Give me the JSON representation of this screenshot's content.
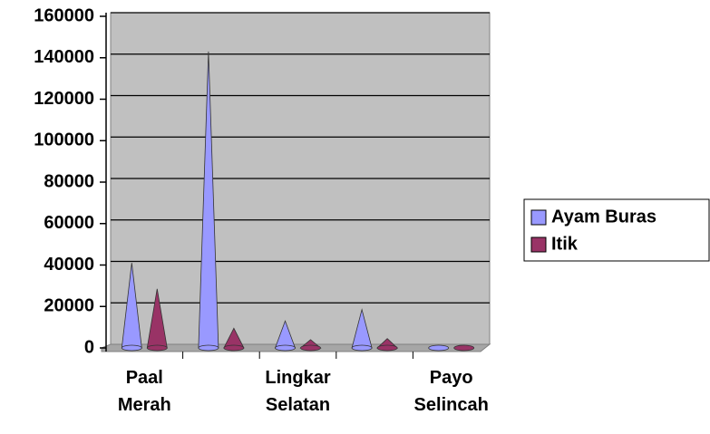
{
  "chart_data": {
    "type": "cone",
    "categories": [
      "Paal Merah",
      null,
      "Lingkar Selatan",
      null,
      "Payo Selincah"
    ],
    "series": [
      {
        "name": "Ayam Buras",
        "color": "#9999ff",
        "values": [
          41000,
          143000,
          13000,
          18500,
          1000
        ]
      },
      {
        "name": "Itik",
        "color": "#993366",
        "values": [
          28500,
          9500,
          4000,
          4500,
          500
        ]
      }
    ],
    "ylim": [
      0,
      160000
    ],
    "yticks": [
      0,
      20000,
      40000,
      60000,
      80000,
      100000,
      120000,
      140000,
      160000
    ],
    "grid": true,
    "legend": "right"
  }
}
